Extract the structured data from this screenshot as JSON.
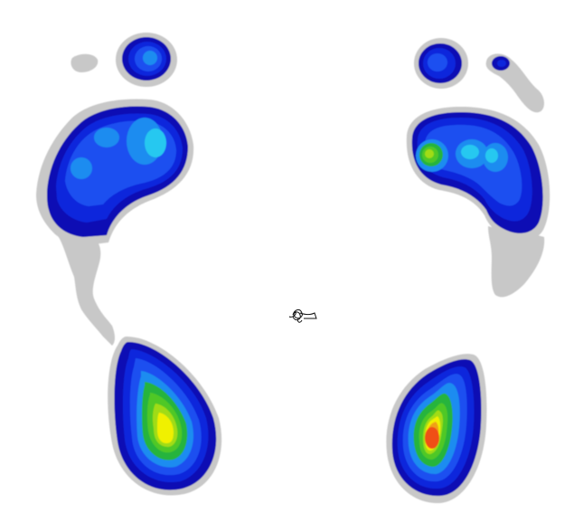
{
  "figure": {
    "background": "#ffffff",
    "description_visible_text": ""
  },
  "palette": {
    "outline": "#c8c8c8",
    "scale": [
      "#0a0ab4",
      "#0a28dc",
      "#1e50f0",
      "#1e8cf0",
      "#28c8f0",
      "#28b43c",
      "#50c828",
      "#a0dc14",
      "#f0f000",
      "#f0a014",
      "#f05014"
    ]
  },
  "regions": [
    {
      "name": "left-toe",
      "levels": 4
    },
    {
      "name": "left-toe-gray",
      "levels": 1
    },
    {
      "name": "left-forefoot",
      "levels": 6
    },
    {
      "name": "left-arch-gray",
      "levels": 1
    },
    {
      "name": "left-heel",
      "levels": 10
    },
    {
      "name": "right-toe",
      "levels": 4
    },
    {
      "name": "right-small-toe",
      "levels": 2
    },
    {
      "name": "right-forefoot",
      "levels": 8
    },
    {
      "name": "right-arch-gray",
      "levels": 1
    },
    {
      "name": "right-heel",
      "levels": 11
    }
  ],
  "cop_trace": {
    "name": "center-of-pressure-trace"
  }
}
